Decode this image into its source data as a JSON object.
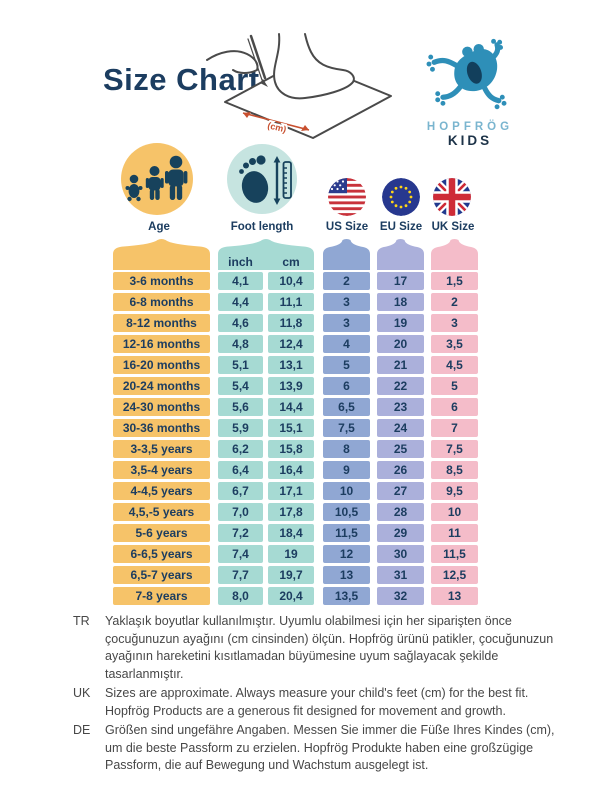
{
  "header": {
    "title": "Size Chart",
    "measure_annotation": "(cm)",
    "logo": {
      "brand": "HOPFRÖG",
      "sub": "KIDS"
    }
  },
  "colors": {
    "navy_text": "#1C3D60",
    "age_column": "#F6C369",
    "foot_column": "#A6DAD3",
    "foot_circle_bg": "#C6E4E0",
    "us_column": "#90A7D3",
    "eu_column": "#ABB0DB",
    "uk_column": "#F4BCC9",
    "frog_blue": "#2E8FB8",
    "arrow_red": "#C8502F",
    "footer_gray": "#474747"
  },
  "columns": [
    {
      "id": "age",
      "label": "Age",
      "color": "#F6C369",
      "icon": "children-icon"
    },
    {
      "id": "foot",
      "label": "Foot length",
      "color": "#A6DAD3",
      "icon": "foot-ruler-icon",
      "subcolumns": [
        "inch",
        "cm"
      ]
    },
    {
      "id": "us",
      "label": "US Size",
      "color": "#90A7D3",
      "icon": "us-flag-icon"
    },
    {
      "id": "eu",
      "label": "EU Size",
      "color": "#ABB0DB",
      "icon": "eu-flag-icon"
    },
    {
      "id": "uk",
      "label": "UK Size",
      "color": "#F4BCC9",
      "icon": "uk-flag-icon"
    }
  ],
  "chart_data": {
    "type": "table",
    "title": "Size Chart",
    "columns": [
      "Age",
      "Foot length (inch)",
      "Foot length (cm)",
      "US Size",
      "EU Size",
      "UK Size"
    ],
    "rows": [
      [
        "3-6 months",
        "4,1",
        "10,4",
        "2",
        "17",
        "1,5"
      ],
      [
        "6-8 months",
        "4,4",
        "11,1",
        "3",
        "18",
        "2"
      ],
      [
        "8-12 months",
        "4,6",
        "11,8",
        "3",
        "19",
        "3"
      ],
      [
        "12-16 months",
        "4,8",
        "12,4",
        "4",
        "20",
        "3,5"
      ],
      [
        "16-20 months",
        "5,1",
        "13,1",
        "5",
        "21",
        "4,5"
      ],
      [
        "20-24 months",
        "5,4",
        "13,9",
        "6",
        "22",
        "5"
      ],
      [
        "24-30 months",
        "5,6",
        "14,4",
        "6,5",
        "23",
        "6"
      ],
      [
        "30-36 months",
        "5,9",
        "15,1",
        "7,5",
        "24",
        "7"
      ],
      [
        "3-3,5 years",
        "6,2",
        "15,8",
        "8",
        "25",
        "7,5"
      ],
      [
        "3,5-4 years",
        "6,4",
        "16,4",
        "9",
        "26",
        "8,5"
      ],
      [
        "4-4,5 years",
        "6,7",
        "17,1",
        "10",
        "27",
        "9,5"
      ],
      [
        "4,5,-5 years",
        "7,0",
        "17,8",
        "10,5",
        "28",
        "10"
      ],
      [
        "5-6 years",
        "7,2",
        "18,4",
        "11,5",
        "29",
        "11"
      ],
      [
        "6-6,5 years",
        "7,4",
        "19",
        "12",
        "30",
        "11,5"
      ],
      [
        "6,5-7 years",
        "7,7",
        "19,7",
        "13",
        "31",
        "12,5"
      ],
      [
        "7-8 years",
        "8,0",
        "20,4",
        "13,5",
        "32",
        "13"
      ]
    ]
  },
  "footnotes": [
    {
      "lang": "TR",
      "text": "Yaklaşık boyutlar kullanılmıştır. Uyumlu olabilmesi için her siparişten önce çocuğunuzun ayağını (cm cinsinden) ölçün. Hopfrög ürünü patikler, çocuğunuzun ayağının hareketini kısıtlamadan büyümesine uyum sağlayacak şekilde tasarlanmıştır."
    },
    {
      "lang": "UK",
      "text": "Sizes are approximate. Always measure your child's feet (cm) for the best fit. Hopfrög Products are a generous fit designed for movement and growth."
    },
    {
      "lang": "DE",
      "text": "Größen sind ungefähre Angaben. Messen Sie immer die Füße Ihres Kindes (cm), um die beste Passform zu erzielen. Hopfrög Produkte haben eine großzügige Passform, die auf Bewegung und Wachstum ausgelegt ist."
    }
  ]
}
